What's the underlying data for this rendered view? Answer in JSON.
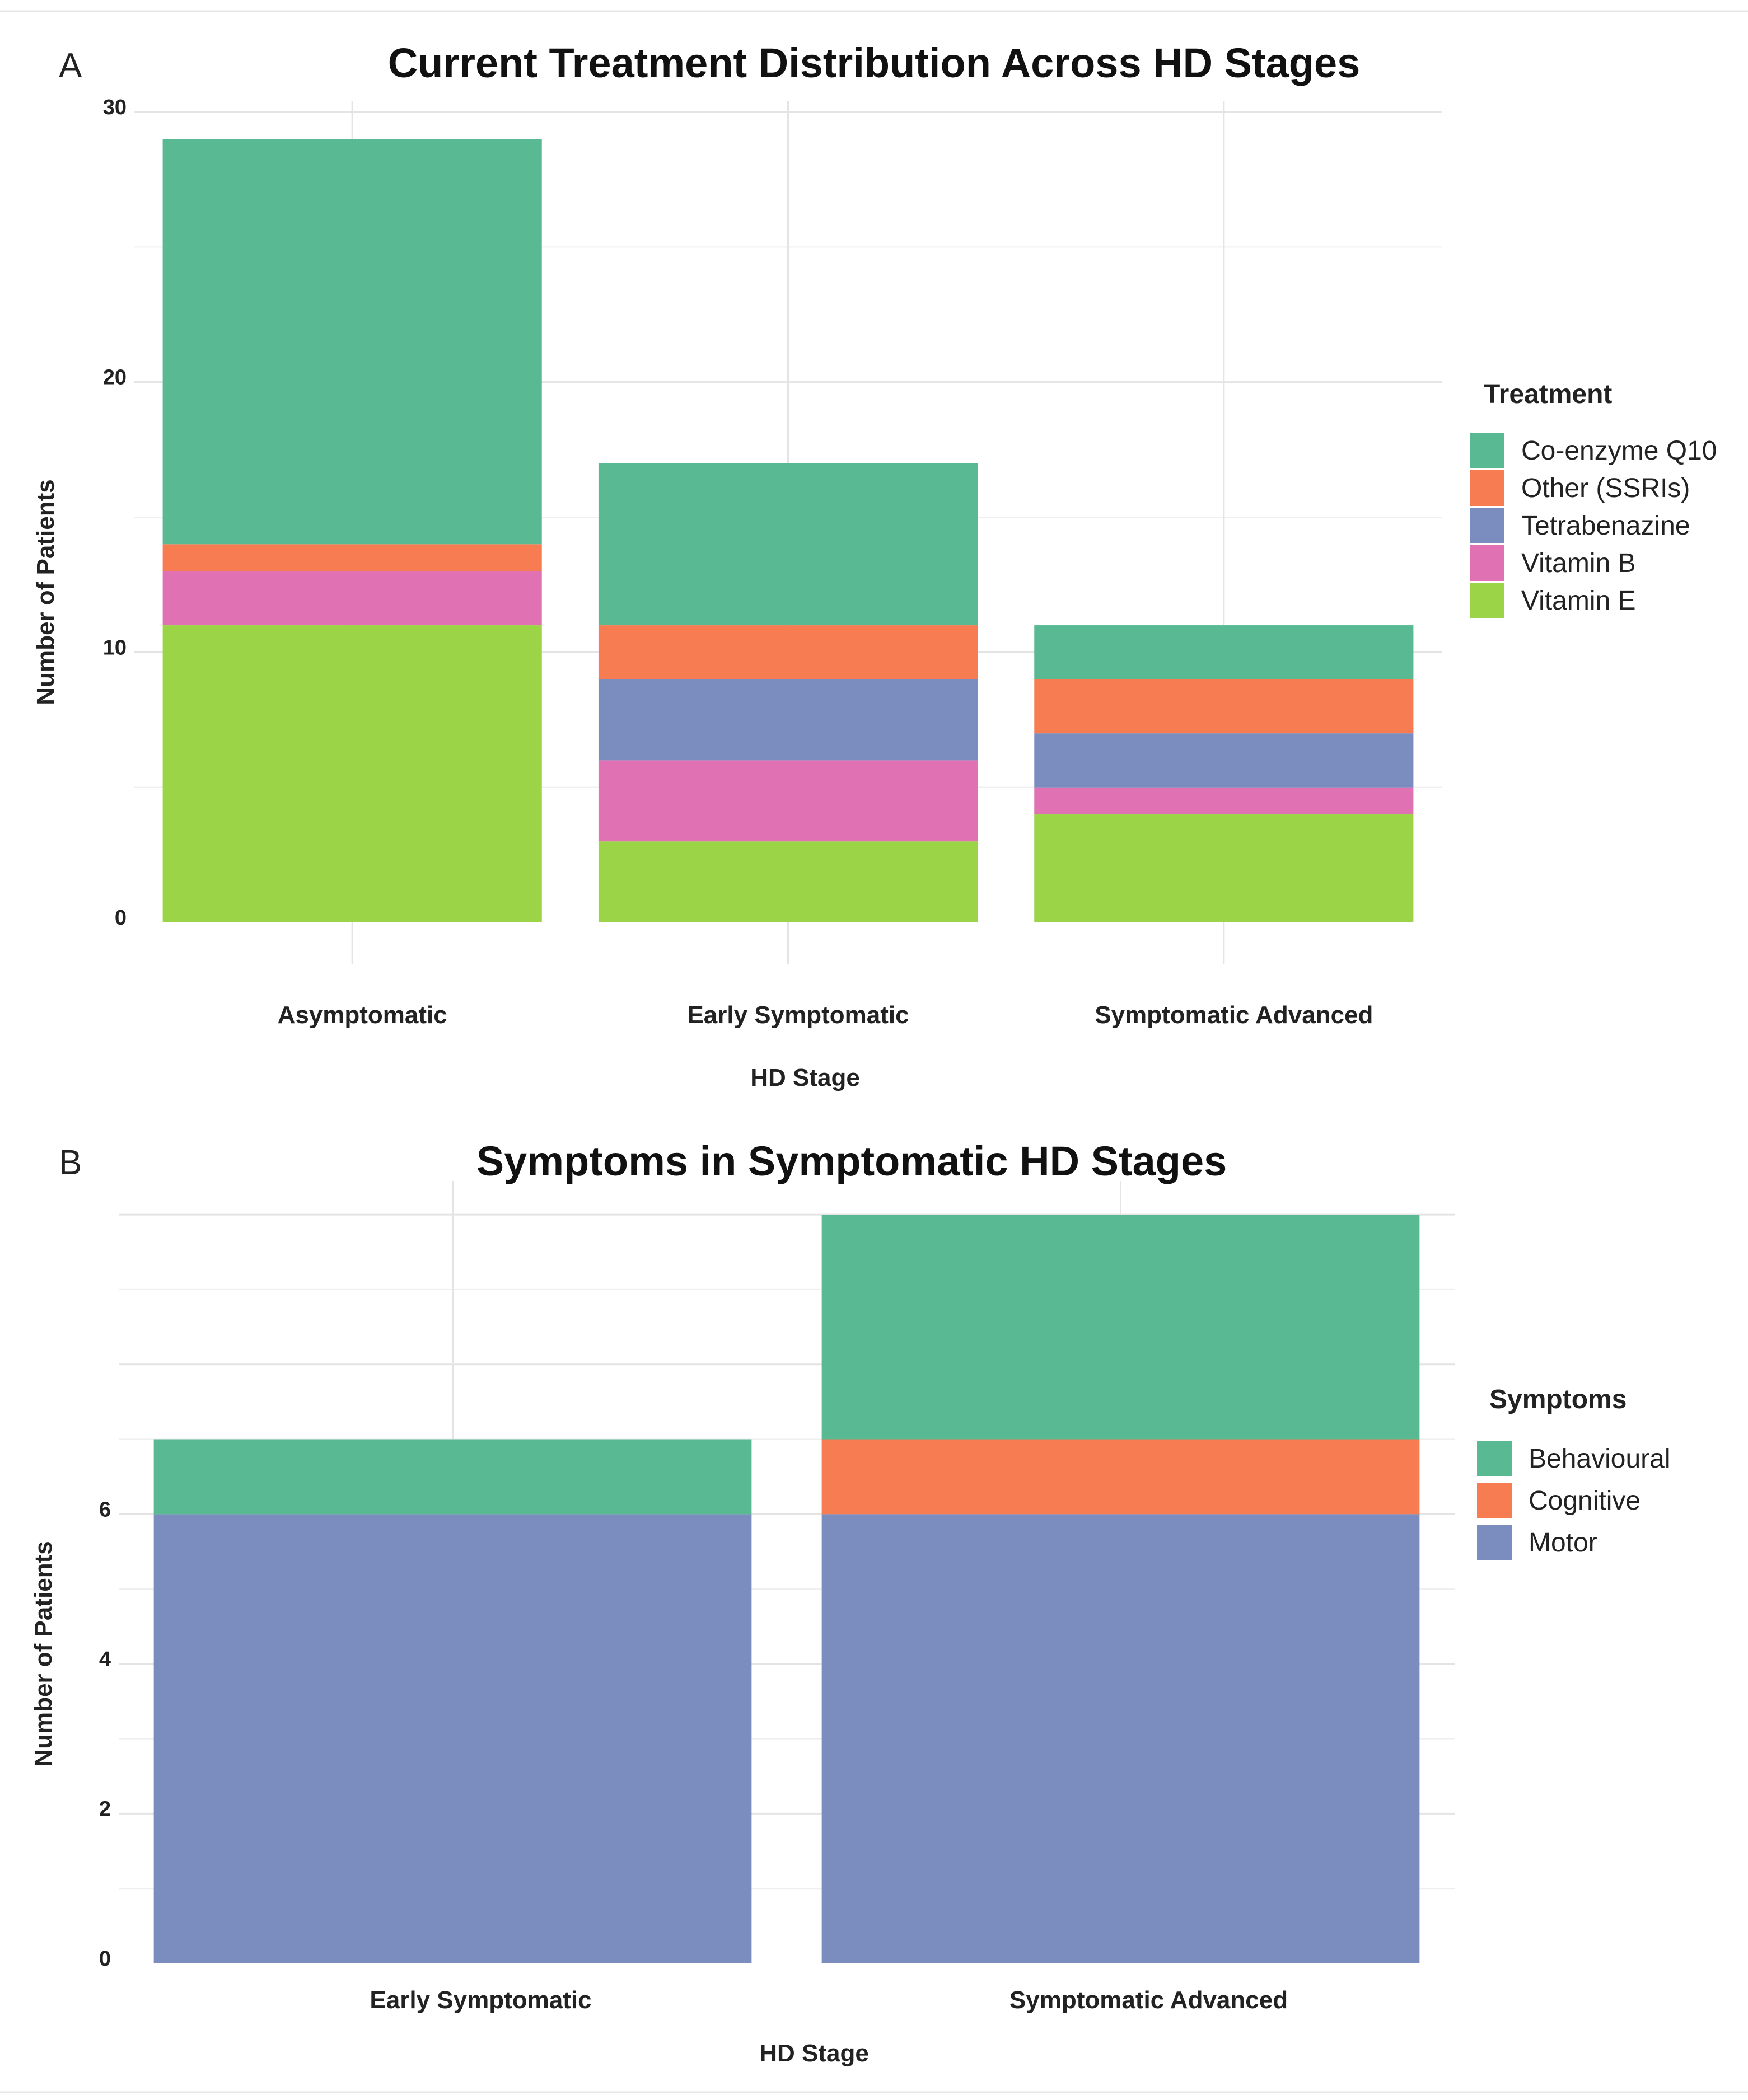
{
  "chart_data": [
    {
      "type": "bar",
      "stacked": true,
      "panel_label": "A",
      "title": "Current Treatment Distribution Across HD Stages",
      "xlabel": "HD Stage",
      "ylabel": "Number of Patients",
      "ylim": [
        0,
        30
      ],
      "yticks": [
        0,
        10,
        20,
        30
      ],
      "grid": true,
      "legend_title": "Treatment",
      "legend_position": "right",
      "categories": [
        "Asymptomatic",
        "Early Symptomatic",
        "Symptomatic Advanced"
      ],
      "series": [
        {
          "name": "Vitamin E",
          "color": "#9bd446",
          "values": [
            11,
            3,
            4
          ]
        },
        {
          "name": "Vitamin B",
          "color": "#e072b4",
          "values": [
            2,
            3,
            1
          ]
        },
        {
          "name": "Tetrabenazine",
          "color": "#7b8dbf",
          "values": [
            0,
            3,
            2
          ]
        },
        {
          "name": "Other (SSRIs)",
          "color": "#f77c52",
          "values": [
            1,
            2,
            2
          ]
        },
        {
          "name": "Co-enzyme Q10",
          "color": "#58b993",
          "values": [
            15,
            6,
            2
          ]
        }
      ],
      "legend_order": [
        "Co-enzyme Q10",
        "Other (SSRIs)",
        "Tetrabenazine",
        "Vitamin B",
        "Vitamin E"
      ]
    },
    {
      "type": "bar",
      "stacked": true,
      "panel_label": "B",
      "title": "Symptoms in Symptomatic HD Stages",
      "xlabel": "HD Stage",
      "ylabel": "Number of Patients",
      "ylim": [
        0,
        10.3
      ],
      "yticks": [
        0,
        2,
        4,
        6
      ],
      "grid": true,
      "legend_title": "Symptoms",
      "legend_position": "right",
      "categories": [
        "Early Symptomatic",
        "Symptomatic Advanced"
      ],
      "series": [
        {
          "name": "Motor",
          "color": "#7b8dbf",
          "values": [
            6,
            6
          ]
        },
        {
          "name": "Cognitive",
          "color": "#f77c52",
          "values": [
            0,
            1
          ]
        },
        {
          "name": "Behavioural",
          "color": "#58b993",
          "values": [
            1,
            3
          ]
        }
      ],
      "legend_order": [
        "Behavioural",
        "Cognitive",
        "Motor"
      ]
    }
  ]
}
